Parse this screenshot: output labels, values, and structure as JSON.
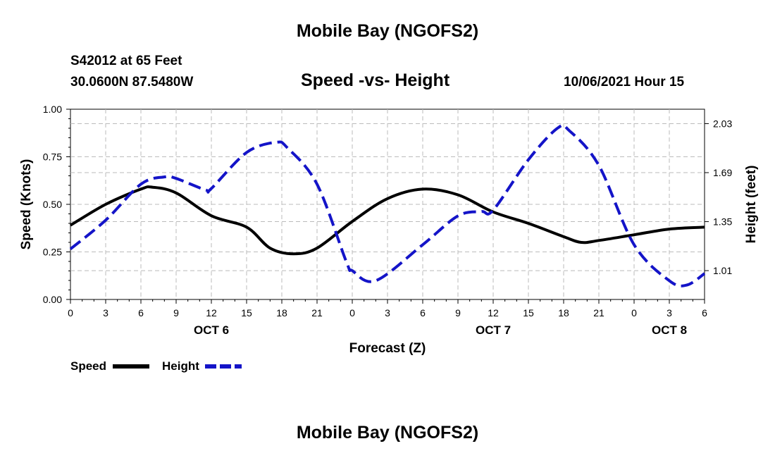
{
  "page": {
    "top_title": "Mobile Bay (NGOFS2)",
    "bottom_title": "Mobile Bay (NGOFS2)",
    "station": "S42012 at 65 Feet",
    "coords": "30.0600N  87.5480W",
    "subtitle": "Speed -vs- Height",
    "stamp": "10/06/2021 Hour 15"
  },
  "chart_data": {
    "type": "line",
    "title": "Speed -vs- Height",
    "xlabel": "Forecast (Z)",
    "ylabel": "Speed (Knots)",
    "ylabel_right": "Height (feet)",
    "x_unit": "hours from Oct 6 00Z",
    "xlim": [
      0,
      54
    ],
    "ylim": [
      0,
      1
    ],
    "ylim_right": [
      0.81,
      2.13
    ],
    "grid": true,
    "x_ticks": [
      {
        "x": 0,
        "label": "0"
      },
      {
        "x": 3,
        "label": "3"
      },
      {
        "x": 6,
        "label": "6"
      },
      {
        "x": 9,
        "label": "9"
      },
      {
        "x": 12,
        "label": "12"
      },
      {
        "x": 15,
        "label": "15"
      },
      {
        "x": 18,
        "label": "18"
      },
      {
        "x": 21,
        "label": "21"
      },
      {
        "x": 24,
        "label": "0"
      },
      {
        "x": 27,
        "label": "3"
      },
      {
        "x": 30,
        "label": "6"
      },
      {
        "x": 33,
        "label": "9"
      },
      {
        "x": 36,
        "label": "12"
      },
      {
        "x": 39,
        "label": "15"
      },
      {
        "x": 42,
        "label": "18"
      },
      {
        "x": 45,
        "label": "21"
      },
      {
        "x": 48,
        "label": "0"
      },
      {
        "x": 51,
        "label": "3"
      },
      {
        "x": 54,
        "label": "6"
      }
    ],
    "date_labels": [
      {
        "x": 12,
        "label": "OCT 6"
      },
      {
        "x": 36,
        "label": "OCT 7"
      },
      {
        "x": 51,
        "label": "OCT 8"
      }
    ],
    "y_ticks": [
      {
        "value": 0,
        "label": "0.00"
      },
      {
        "value": 0.25,
        "label": "0.25"
      },
      {
        "value": 0.5,
        "label": "0.50"
      },
      {
        "value": 0.75,
        "label": "0.75"
      },
      {
        "value": 1,
        "label": "1.00"
      }
    ],
    "y_ticks_right": [
      {
        "value": 1.01,
        "label": "1.01"
      },
      {
        "value": 1.35,
        "label": "1.35"
      },
      {
        "value": 1.69,
        "label": "1.69"
      },
      {
        "value": 2.03,
        "label": "2.03"
      }
    ],
    "series": [
      {
        "name": "Speed",
        "axis": "left",
        "color": "#000000",
        "style": "solid",
        "x": [
          0,
          3,
          6,
          7,
          9,
          12,
          15,
          17,
          19,
          21,
          24,
          27,
          30,
          33,
          36,
          39,
          42,
          43.5,
          45,
          48,
          51,
          54
        ],
        "y": [
          0.39,
          0.5,
          0.58,
          0.59,
          0.56,
          0.44,
          0.38,
          0.27,
          0.24,
          0.27,
          0.41,
          0.53,
          0.58,
          0.55,
          0.46,
          0.4,
          0.33,
          0.3,
          0.31,
          0.34,
          0.37,
          0.38
        ]
      },
      {
        "name": "Height",
        "axis": "right",
        "color": "#1414c8",
        "style": "dashed",
        "x": [
          0,
          3,
          6,
          8,
          9,
          11.5,
          12,
          15,
          17.5,
          18.5,
          21,
          23.5,
          24,
          26,
          30,
          33,
          35,
          36,
          39,
          41.5,
          42.5,
          45,
          48,
          51,
          52.5,
          54
        ],
        "y": [
          1.16,
          1.36,
          1.61,
          1.66,
          1.65,
          1.57,
          1.58,
          1.83,
          1.9,
          1.86,
          1.61,
          1.07,
          1.01,
          0.94,
          1.19,
          1.39,
          1.42,
          1.43,
          1.78,
          2.0,
          1.98,
          1.74,
          1.19,
          0.94,
          0.91,
          0.99
        ]
      }
    ]
  },
  "legend": [
    {
      "label": "Speed",
      "color": "#000000",
      "style": "solid"
    },
    {
      "label": "Height",
      "color": "#1414c8",
      "style": "dashed"
    }
  ]
}
